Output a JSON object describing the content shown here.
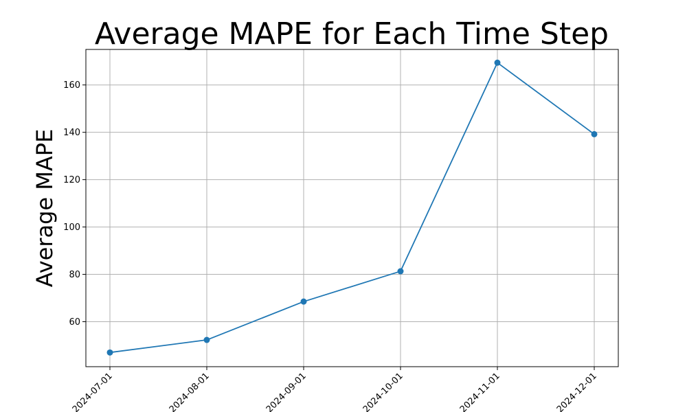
{
  "chart_data": {
    "type": "line",
    "title": "Average MAPE for Each Time Step",
    "xlabel": "",
    "ylabel": "Average MAPE",
    "x": [
      "2024-07-01",
      "2024-08-01",
      "2024-09-01",
      "2024-10-01",
      "2024-11-01",
      "2024-12-01"
    ],
    "series": [
      {
        "values": [
          47.0,
          52.3,
          68.5,
          81.3,
          169.4,
          139.2
        ],
        "color": "#1f77b4",
        "marker": "circle"
      }
    ],
    "yticks": [
      60,
      80,
      100,
      120,
      140,
      160
    ],
    "ylim": [
      41,
      175
    ],
    "xtick_rotation": 45,
    "grid": true,
    "legend": "none"
  }
}
